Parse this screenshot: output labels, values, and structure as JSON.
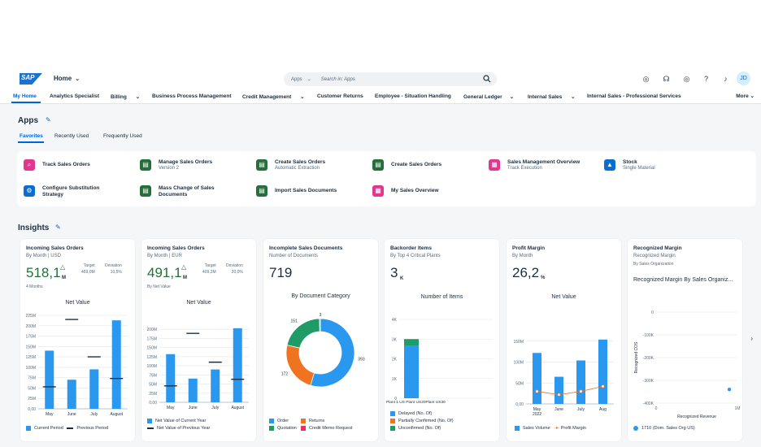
{
  "shell": {
    "logo": "SAP",
    "home_label": "Home",
    "search_scope": "Apps",
    "search_placeholder": "Search in: Apps",
    "avatar": "JD"
  },
  "nav": {
    "items": [
      "My Home",
      "Analytics Specialist",
      "Billing",
      "Business Process Management",
      "Credit Management",
      "Customer Returns",
      "Employee - Situation Handling",
      "General Ledger",
      "Internal Sales",
      "Internal Sales - Professional Services"
    ],
    "more": "More"
  },
  "apps": {
    "title": "Apps",
    "tabs": [
      "Favorites",
      "Recently Used",
      "Frequently Used"
    ],
    "tiles": [
      {
        "title": "Track Sales Orders",
        "subtitle": "",
        "color": "#e0378f"
      },
      {
        "title": "Manage Sales Orders",
        "subtitle": "Version 2",
        "color": "#256f3a"
      },
      {
        "title": "Create Sales Orders",
        "subtitle": "Automatic Extraction",
        "color": "#256f3a"
      },
      {
        "title": "Create Sales Orders",
        "subtitle": "",
        "color": "#256f3a"
      },
      {
        "title": "Sales Management Overview",
        "subtitle": "Track Execution",
        "color": "#e0378f"
      },
      {
        "title": "Stock",
        "subtitle": "Single Material",
        "color": "#0a6ed1"
      },
      {
        "title": "Configure Substitution Strategy",
        "subtitle": "",
        "color": "#0a6ed1"
      },
      {
        "title": "Mass Change of Sales Documents",
        "subtitle": "",
        "color": "#256f3a"
      },
      {
        "title": "Import Sales Documents",
        "subtitle": "",
        "color": "#256f3a"
      },
      {
        "title": "My Sales Overview",
        "subtitle": "",
        "color": "#e0378f"
      }
    ]
  },
  "insights": {
    "title": "Insights",
    "cards": [
      {
        "title": "Incoming Sales Orders",
        "subtitle": "By Month | USD",
        "kpi": "518,1",
        "unit": "M",
        "target_label": "Target",
        "target": "469,0M",
        "deviation_label": "Deviation",
        "deviation": "10,5%",
        "period": "4 Months",
        "chart_title": "Net Value"
      },
      {
        "title": "Incoming Sales Orders",
        "subtitle": "By Month | EUR",
        "kpi": "491,1",
        "unit": "M",
        "target_label": "Target",
        "target": "409,2M",
        "deviation_label": "Deviation",
        "deviation": "20,0%",
        "period": "By Net Value",
        "chart_title": "Net Value"
      },
      {
        "title": "Incomplete Sales Documents",
        "subtitle": "Number of Documents",
        "kpi": "719",
        "chart_title": "By Document Category"
      },
      {
        "title": "Backorder Items",
        "subtitle": "By Top 4 Critical Plants",
        "kpi": "3",
        "unit": "K",
        "chart_title": "Number of Items"
      },
      {
        "title": "Profit Margin",
        "subtitle": "By Month",
        "kpi": "26,2",
        "unit": "%",
        "chart_title": "Net Value"
      },
      {
        "title": "Recognized Margin",
        "subtitle": "Recognized Margin",
        "subtitle2": "By Sales Organization",
        "chart_title": "Recognized Margin By Sales Organiz..."
      }
    ]
  },
  "chart_data": [
    {
      "type": "bar",
      "title": "Net Value",
      "categories": [
        "May",
        "June",
        "July",
        "August"
      ],
      "series": [
        {
          "name": "Current Period",
          "values": [
            140,
            70,
            95,
            213
          ]
        },
        {
          "name": "Previous Period",
          "values": [
            53,
            215,
            125,
            73
          ]
        }
      ],
      "yticks": [
        "0,00",
        "25M",
        "50M",
        "75M",
        "100M",
        "125M",
        "150M",
        "175M",
        "200M",
        "225M"
      ],
      "ylim": [
        0,
        225
      ],
      "colors": [
        "#2b98f0",
        "#1d2d3e"
      ]
    },
    {
      "type": "bar",
      "title": "Net Value",
      "categories": [
        "May",
        "June",
        "July",
        "August"
      ],
      "series": [
        {
          "name": "Net Value of Current Year",
          "values": [
            132,
            65,
            90,
            203
          ]
        },
        {
          "name": "Net Value of Previous Year",
          "values": [
            45,
            189,
            110,
            63
          ]
        }
      ],
      "yticks": [
        "0,00",
        "25M",
        "50M",
        "75M",
        "100M",
        "125M",
        "150M",
        "175M",
        "200M"
      ],
      "ylim": [
        0,
        225
      ],
      "colors": [
        "#2b98f0",
        "#1d2d3e"
      ]
    },
    {
      "type": "pie",
      "title": "By Document Category",
      "labels": [
        "Order",
        "Returns",
        "Quotation",
        "Credit Memo Request"
      ],
      "values": [
        393,
        172,
        151,
        3
      ],
      "colors": [
        "#2b98f0",
        "#f0731f",
        "#1e9b67",
        "#e9305f"
      ]
    },
    {
      "type": "bar",
      "title": "Number of Items",
      "categories": [
        "Plant 1 US Plant US20Plant US30"
      ],
      "series": [
        {
          "name": "Delayed (No. Of)",
          "values": [
            2650
          ]
        },
        {
          "name": "Partially Confirmed (No. Of)",
          "values": [
            0
          ]
        },
        {
          "name": "Unconfirmed (No. Of)",
          "values": [
            350
          ]
        }
      ],
      "yticks": [
        "0",
        "1K",
        "2K",
        "3K",
        "4K"
      ],
      "ylim": [
        0,
        4000
      ],
      "colors": [
        "#2b98f0",
        "#f0731f",
        "#1e9b67"
      ]
    },
    {
      "type": "bar",
      "title": "Net Value",
      "categories": [
        "May 2022",
        "June",
        "July",
        "Aug"
      ],
      "series": [
        {
          "name": "Sales Volume",
          "values": [
            122,
            65,
            104,
            154
          ]
        },
        {
          "name": "Profit Margin",
          "values": [
            30,
            22,
            30,
            42
          ]
        }
      ],
      "yticks": [
        "0,00",
        "50M",
        "100M",
        "150M"
      ],
      "ylim": [
        0,
        175
      ],
      "colors": [
        "#2b98f0",
        "#f0731f"
      ]
    },
    {
      "type": "scatter",
      "title": "Recognized Margin By Sales Organiz...",
      "xlabel": "Recognized Revenue",
      "ylabel": "Recognized COS",
      "xticks": [
        "0",
        "1M"
      ],
      "yticks": [
        "0",
        "-100K",
        "-200K",
        "-300K",
        "-400K"
      ],
      "series": [
        {
          "name": "1710 (Dom. Sales Org US)",
          "x": [
            0.9
          ],
          "y": [
            -340
          ]
        }
      ],
      "colors": [
        "#2b98f0"
      ]
    }
  ]
}
